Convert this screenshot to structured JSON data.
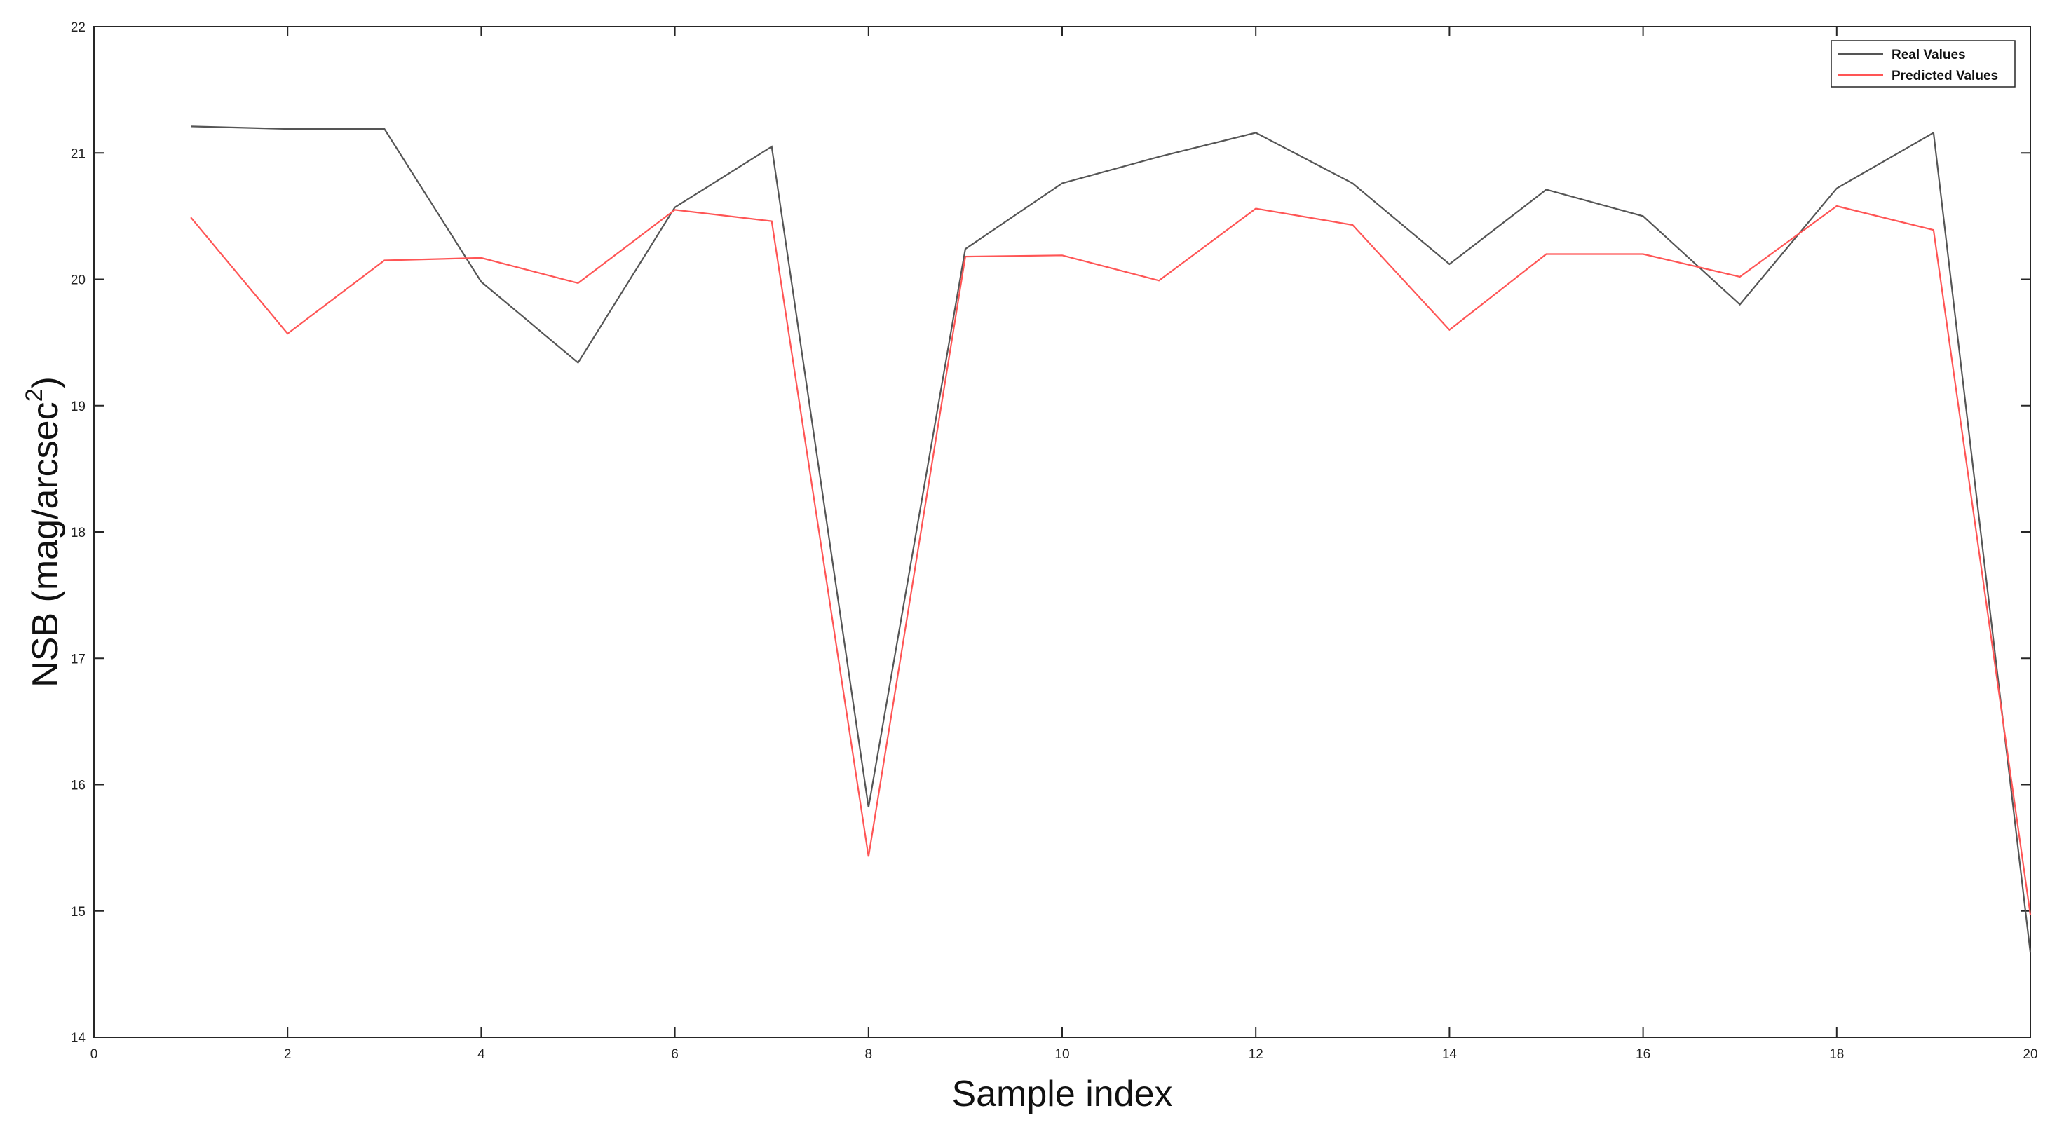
{
  "chart_data": {
    "type": "line",
    "title": "",
    "xlabel": "Sample index",
    "ylabel_main": "NSB (mag/arcsec",
    "ylabel_sup": "2",
    "ylabel_close": ")",
    "xlim": [
      0,
      20
    ],
    "ylim": [
      14,
      22
    ],
    "xticks": [
      0,
      2,
      4,
      6,
      8,
      10,
      12,
      14,
      16,
      18,
      20
    ],
    "yticks": [
      14,
      15,
      16,
      17,
      18,
      19,
      20,
      21,
      22
    ],
    "grid": false,
    "legend_position": "top-right",
    "x": [
      1,
      2,
      3,
      4,
      5,
      6,
      7,
      8,
      9,
      10,
      11,
      12,
      13,
      14,
      15,
      16,
      17,
      18,
      19,
      20
    ],
    "series": [
      {
        "name": "Real Values",
        "color": "#555555",
        "values": [
          21.21,
          21.19,
          21.19,
          19.98,
          19.34,
          20.57,
          21.05,
          15.82,
          20.24,
          20.76,
          20.97,
          21.16,
          20.76,
          20.12,
          20.71,
          20.5,
          19.8,
          20.72,
          21.16,
          14.67
        ]
      },
      {
        "name": "Predicted Values",
        "color": "#ff5555",
        "values": [
          20.49,
          19.57,
          20.15,
          20.17,
          19.97,
          20.55,
          20.46,
          15.43,
          20.18,
          20.19,
          19.99,
          20.56,
          20.43,
          19.6,
          20.2,
          20.2,
          20.02,
          20.58,
          20.39,
          14.97
        ]
      }
    ]
  }
}
